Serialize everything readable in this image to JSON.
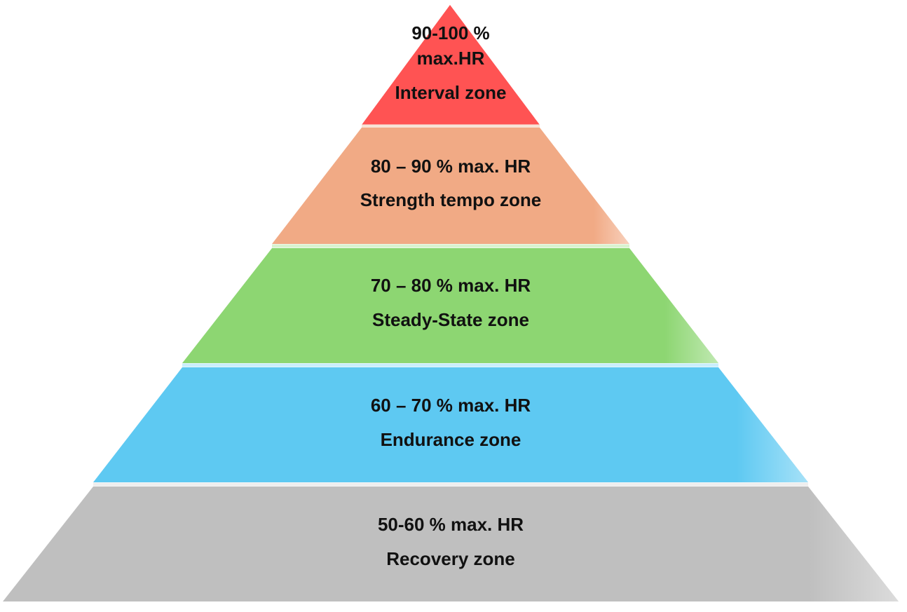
{
  "pyramid": {
    "levels": [
      {
        "name": "interval",
        "range_lines": [
          "90-100 %",
          "max.HR"
        ],
        "zone": "Interval zone",
        "color": "#ff5353"
      },
      {
        "name": "strength-tempo",
        "range": "80 – 90 % max. HR",
        "zone": "Strength tempo zone",
        "color": "#f1aa85"
      },
      {
        "name": "steady-state",
        "range": "70 – 80 % max. HR",
        "zone": "Steady-State zone",
        "color": "#8dd672"
      },
      {
        "name": "endurance",
        "range": "60 – 70 % max. HR",
        "zone": "Endurance zone",
        "color": "#5ec9f2"
      },
      {
        "name": "recovery",
        "range": "50-60 % max. HR",
        "zone": "Recovery zone",
        "color": "#bfbfbf"
      }
    ]
  }
}
